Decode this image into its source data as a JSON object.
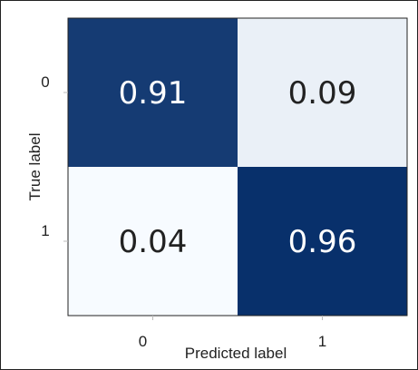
{
  "chart_data": {
    "type": "heatmap",
    "title": "",
    "xlabel": "Predicted label",
    "ylabel": "True label",
    "x_categories": [
      "0",
      "1"
    ],
    "y_categories": [
      "0",
      "1"
    ],
    "values": [
      [
        0.91,
        0.09
      ],
      [
        0.04,
        0.96
      ]
    ],
    "value_labels": [
      [
        "0.91",
        "0.09"
      ],
      [
        "0.04",
        "0.96"
      ]
    ],
    "colormap": "Blues",
    "color_low": "#f7fbff",
    "color_high": "#08306b",
    "text_color_dark_cell": "#ffffff",
    "text_color_light_cell": "#222222",
    "colorbar": false,
    "grid": false,
    "legend": "none"
  }
}
